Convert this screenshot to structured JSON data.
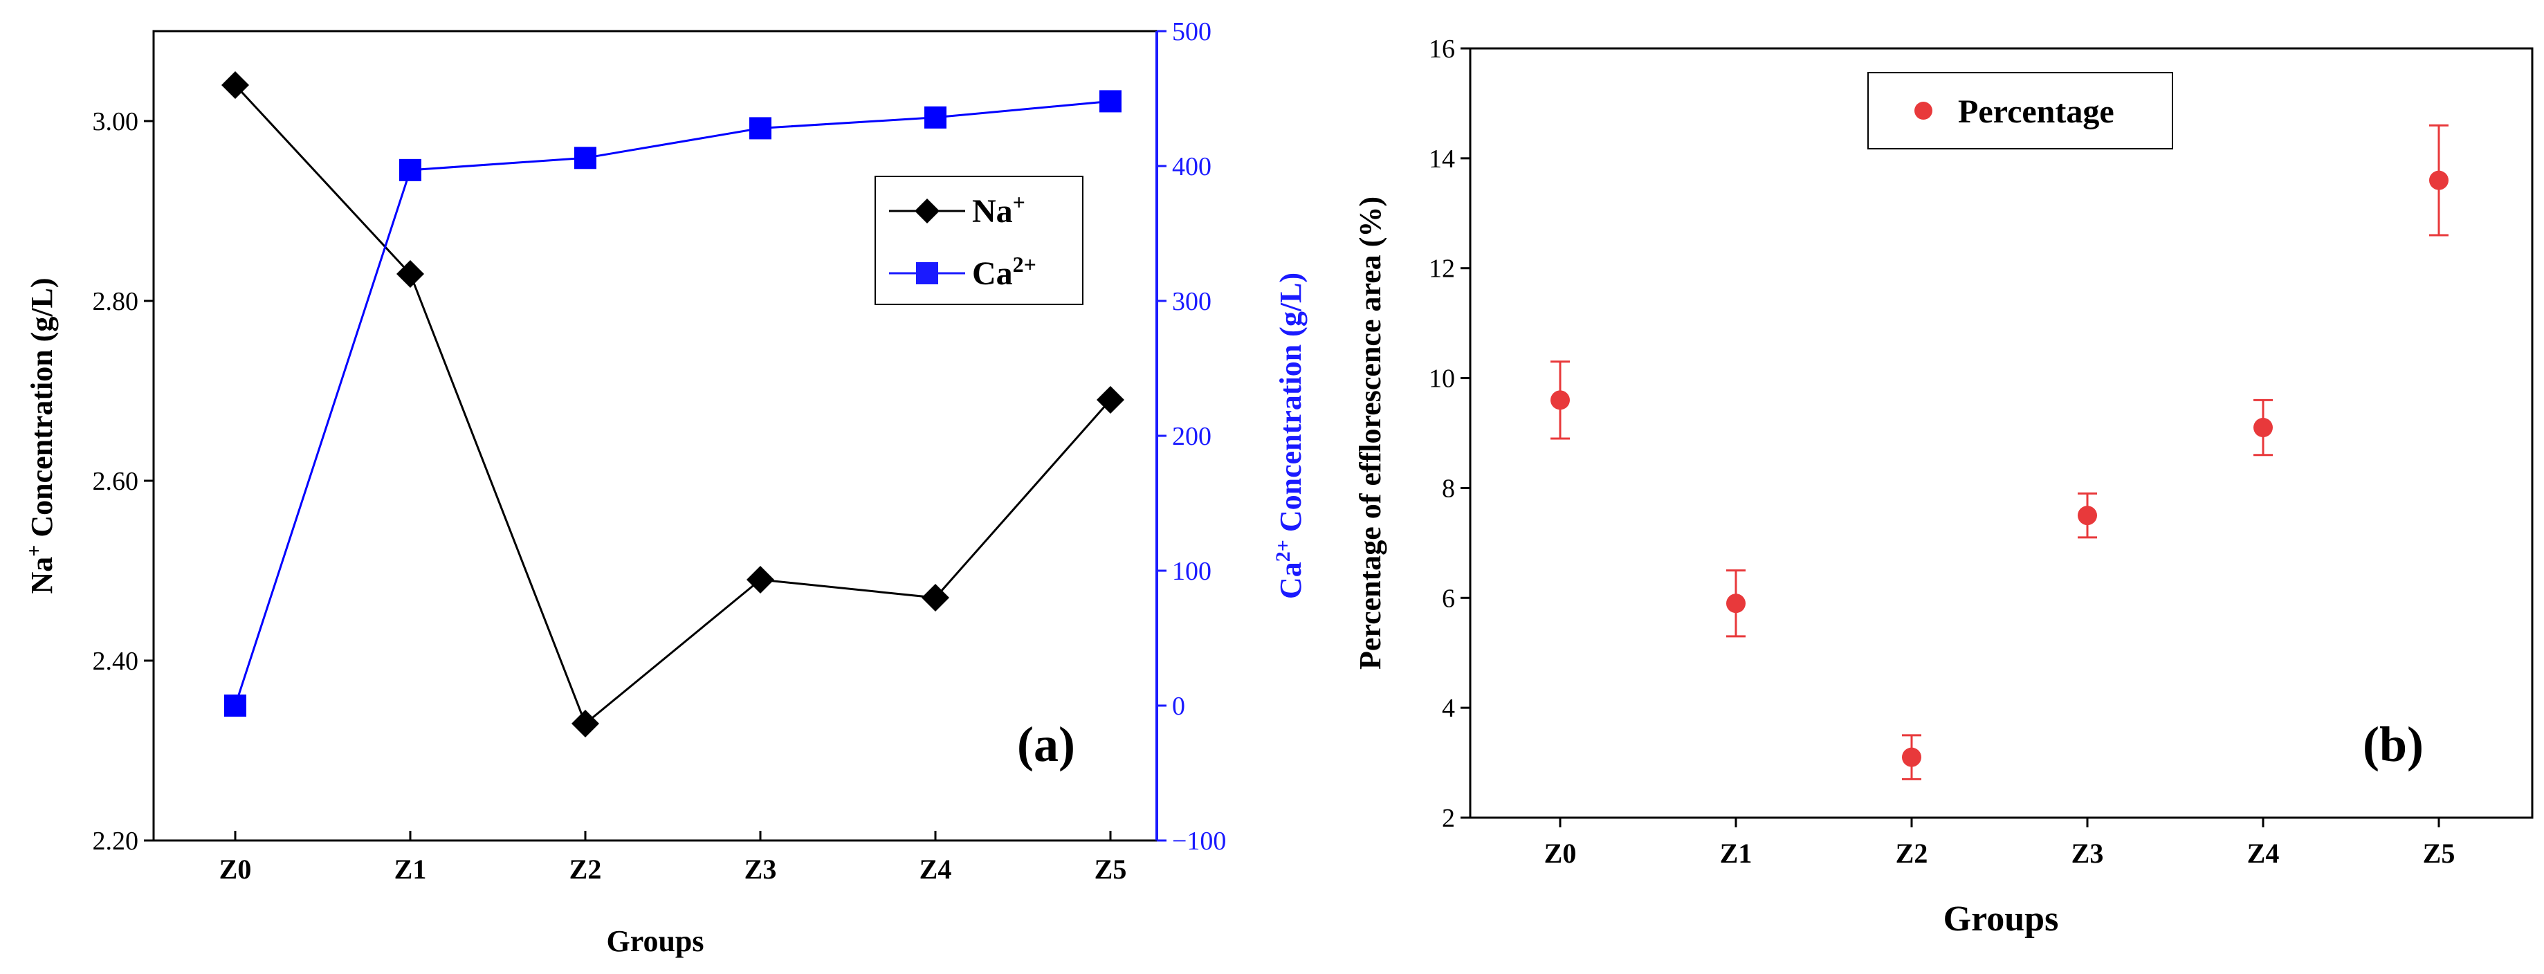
{
  "chart_data": [
    {
      "type": "line",
      "panel_label": "(a)",
      "categories": [
        "Z0",
        "Z1",
        "Z2",
        "Z3",
        "Z4",
        "Z5"
      ],
      "xlabel": "Groups",
      "ylabel_left": {
        "prefix": "Na",
        "sup": "+",
        "suffix": " Concentration (g/L)"
      },
      "ylabel_right": {
        "prefix": "Ca",
        "sup": "2+",
        "suffix": " Concentration (g/L)"
      },
      "ylim_left": [
        2.2,
        3.1
      ],
      "yticks_left": [
        "2.20",
        "2.40",
        "2.60",
        "2.80",
        "3.00"
      ],
      "ylim_right": [
        -100,
        500
      ],
      "yticks_right": [
        "−100",
        "0",
        "100",
        "200",
        "300",
        "400",
        "500"
      ],
      "series": [
        {
          "name": "Na",
          "sup": "+",
          "axis": "left",
          "color": "#000000",
          "marker": "diamond",
          "values": [
            3.04,
            2.83,
            2.33,
            2.49,
            2.47,
            2.69
          ]
        },
        {
          "name": "Ca",
          "sup": "2+",
          "axis": "right",
          "color": "#0000ff",
          "marker": "square",
          "values": [
            0,
            397,
            406,
            428,
            436,
            448
          ]
        }
      ],
      "legend_position": "upper-right"
    },
    {
      "type": "scatter",
      "panel_label": "(b)",
      "categories": [
        "Z0",
        "Z1",
        "Z2",
        "Z3",
        "Z4",
        "Z5"
      ],
      "xlabel": "Groups",
      "ylabel": "Percentage of  efflorescence area (%)",
      "ylim": [
        2,
        16
      ],
      "yticks": [
        "2",
        "4",
        "6",
        "8",
        "10",
        "12",
        "14",
        "16"
      ],
      "series": [
        {
          "name": "Percentage",
          "color": "#e8393b",
          "marker": "circle",
          "values": [
            9.6,
            5.9,
            3.1,
            7.5,
            9.1,
            13.6
          ],
          "errors": [
            0.7,
            0.6,
            0.4,
            0.4,
            0.5,
            1.0
          ]
        }
      ],
      "legend_position": "top-center"
    }
  ]
}
